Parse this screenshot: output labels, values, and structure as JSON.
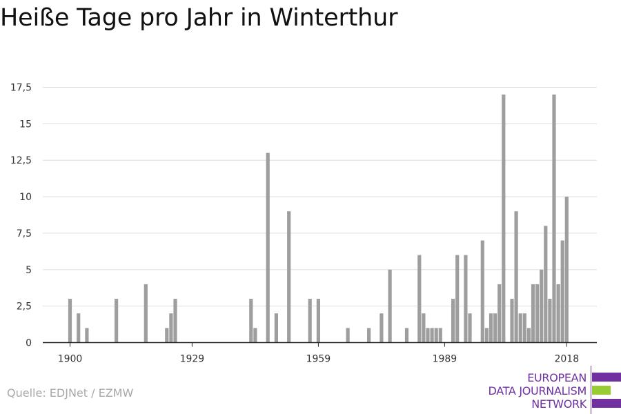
{
  "title": "Heiße Tage pro Jahr in Winterthur",
  "source": "Quelle: EDJNet / EZMW",
  "logo": {
    "lines": [
      "EUROPEAN",
      "DATA JOURNALISM",
      "NETWORK"
    ],
    "colors": [
      "#7030a0",
      "#99cc33",
      "#7030a0"
    ]
  },
  "colors": {
    "bar": "#9e9e9e",
    "grid": "#dddddd",
    "axis": "#222222",
    "title": "#111111",
    "source": "#a8a8a8",
    "logo": "#7030a0"
  },
  "chart_data": {
    "type": "bar",
    "title": "Heiße Tage pro Jahr in Winterthur",
    "xlabel": "",
    "ylabel": "",
    "ylim": [
      0,
      17.5
    ],
    "xlim": [
      1900,
      2018
    ],
    "yticks": [
      0,
      2.5,
      5,
      7.5,
      10,
      12.5,
      15,
      17.5
    ],
    "ytick_labels": [
      "0",
      "2,5",
      "5",
      "7,5",
      "10",
      "12,5",
      "15",
      "17,5"
    ],
    "xticks": [
      1900,
      1929,
      1959,
      1989,
      2018
    ],
    "xtick_labels": [
      "1900",
      "1929",
      "1959",
      "1989",
      "2018"
    ],
    "grid": true,
    "x": [
      1900,
      1902,
      1904,
      1911,
      1918,
      1923,
      1924,
      1925,
      1943,
      1944,
      1947,
      1949,
      1952,
      1957,
      1959,
      1966,
      1971,
      1974,
      1976,
      1980,
      1983,
      1984,
      1985,
      1986,
      1987,
      1988,
      1991,
      1992,
      1994,
      1995,
      1998,
      1999,
      2000,
      2001,
      2002,
      2003,
      2005,
      2006,
      2007,
      2008,
      2009,
      2010,
      2011,
      2012,
      2013,
      2014,
      2015,
      2016,
      2017,
      2018
    ],
    "values": [
      3,
      2,
      1,
      3,
      4,
      1,
      2,
      3,
      3,
      1,
      13,
      2,
      9,
      3,
      3,
      1,
      1,
      2,
      5,
      1,
      6,
      2,
      1,
      1,
      1,
      1,
      3,
      6,
      6,
      2,
      7,
      1,
      2,
      2,
      4,
      17,
      3,
      9,
      2,
      2,
      1,
      4,
      4,
      5,
      8,
      3,
      17,
      4,
      7,
      10
    ]
  }
}
